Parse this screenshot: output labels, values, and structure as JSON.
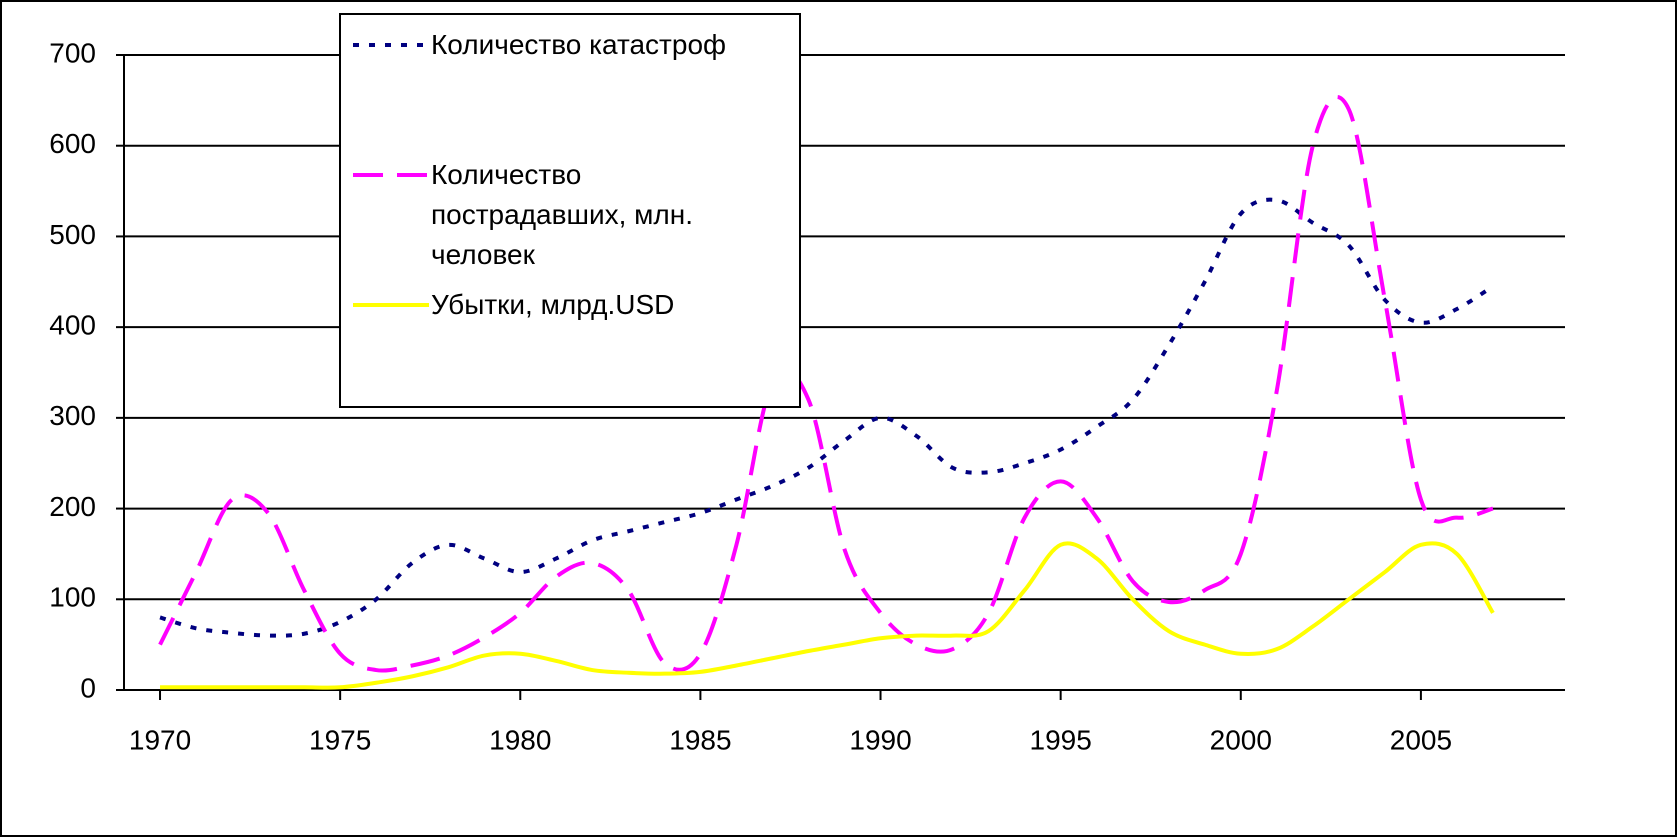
{
  "chart_data": {
    "type": "line",
    "x": [
      1970,
      1971,
      1972,
      1973,
      1974,
      1975,
      1976,
      1977,
      1978,
      1979,
      1980,
      1981,
      1982,
      1983,
      1984,
      1985,
      1986,
      1987,
      1988,
      1989,
      1990,
      1991,
      1992,
      1993,
      1994,
      1995,
      1996,
      1997,
      1998,
      1999,
      2000,
      2001,
      2002,
      2003,
      2004,
      2005,
      2006,
      2007
    ],
    "series": [
      {
        "name": "Количество катастроф",
        "color": "#000080",
        "style": "dotted",
        "values": [
          80,
          68,
          63,
          60,
          62,
          75,
          100,
          140,
          160,
          145,
          130,
          145,
          165,
          175,
          185,
          195,
          210,
          225,
          245,
          275,
          300,
          280,
          245,
          240,
          250,
          265,
          290,
          320,
          380,
          450,
          525,
          540,
          515,
          490,
          430,
          405,
          420,
          445
        ]
      },
      {
        "name": "Количество пострадавших, млн. человек",
        "color": "#ff00ff",
        "style": "dashed",
        "values": [
          50,
          130,
          210,
          195,
          110,
          40,
          22,
          27,
          38,
          58,
          85,
          125,
          140,
          110,
          30,
          40,
          160,
          340,
          320,
          155,
          85,
          50,
          45,
          85,
          190,
          230,
          190,
          120,
          97,
          110,
          150,
          330,
          600,
          640,
          430,
          210,
          190,
          200
        ]
      },
      {
        "name": "Убытки, млрд.USD",
        "color": "#ffff00",
        "style": "solid",
        "values": [
          3,
          3,
          3,
          3,
          3,
          3,
          8,
          15,
          25,
          38,
          40,
          32,
          22,
          19,
          18,
          20,
          27,
          35,
          43,
          50,
          57,
          60,
          60,
          65,
          110,
          160,
          145,
          100,
          65,
          50,
          40,
          45,
          70,
          100,
          130,
          160,
          150,
          85
        ]
      }
    ],
    "xlim": [
      1969,
      2009
    ],
    "xticks": [
      1970,
      1975,
      1980,
      1985,
      1990,
      1995,
      2000,
      2005
    ],
    "ylim": [
      0,
      700
    ],
    "yticks": [
      0,
      100,
      200,
      300,
      400,
      500,
      600,
      700
    ],
    "grid": true
  }
}
